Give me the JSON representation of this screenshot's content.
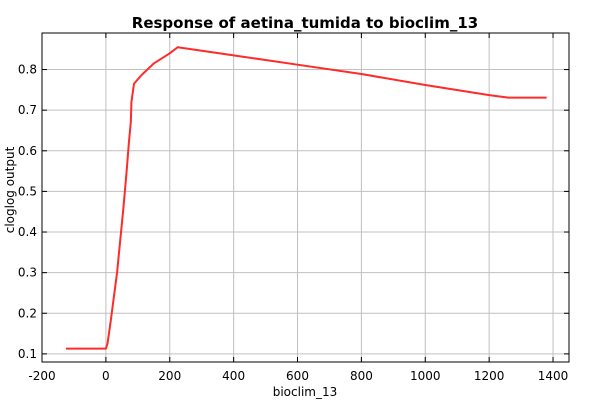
{
  "chart_data": {
    "type": "line",
    "title": "Response of aetina_tumida to bioclim_13",
    "xlabel": "bioclim_13",
    "ylabel": "cloglog output",
    "xlim": [
      -200,
      1450
    ],
    "ylim": [
      0.08,
      0.89
    ],
    "xticks": [
      -200,
      0,
      200,
      400,
      600,
      800,
      1000,
      1200,
      1400
    ],
    "xtick_labels": [
      "-200",
      "0",
      "200",
      "400",
      "600",
      "800",
      "1000",
      "1200",
      "1400"
    ],
    "yticks": [
      0.1,
      0.2,
      0.3,
      0.4,
      0.5,
      0.6,
      0.7,
      0.8
    ],
    "ytick_labels": [
      "0.1",
      "0.2",
      "0.3",
      "0.4",
      "0.5",
      "0.6",
      "0.7",
      "0.8"
    ],
    "grid": true,
    "series": [
      {
        "color": "#ff2a2a",
        "x": [
          -125,
          0,
          5,
          15,
          25,
          35,
          45,
          55,
          65,
          72,
          78,
          80,
          88,
          110,
          150,
          200,
          225,
          400,
          600,
          800,
          1000,
          1200,
          1260,
          1380
        ],
        "y": [
          0.113,
          0.113,
          0.125,
          0.18,
          0.24,
          0.3,
          0.38,
          0.46,
          0.55,
          0.62,
          0.67,
          0.72,
          0.765,
          0.785,
          0.815,
          0.84,
          0.855,
          0.835,
          0.812,
          0.789,
          0.762,
          0.737,
          0.731,
          0.731
        ]
      }
    ]
  }
}
